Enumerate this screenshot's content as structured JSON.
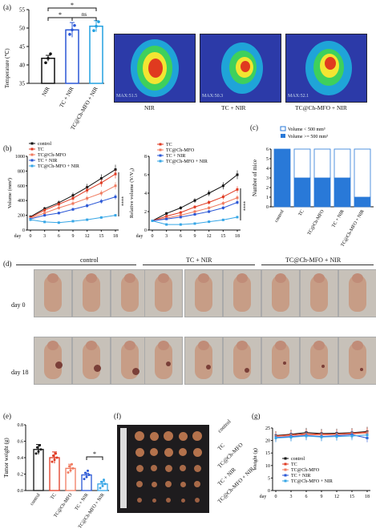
{
  "panels": {
    "a": "(a)",
    "b": "(b)",
    "c": "(c)",
    "d": "(d)",
    "e": "(e)",
    "f": "(f)",
    "g": "(g)"
  },
  "panel_a": {
    "ylabel": "Temperature (℃)",
    "yticks": [
      "35",
      "40",
      "45",
      "50",
      "55"
    ],
    "sig": [
      "*",
      "*",
      "ns"
    ],
    "thermal_labels": [
      "NIR",
      "TC + NIR",
      "TC@Ch-MFO + NIR"
    ],
    "thermal_readouts": [
      "MAX:51.5",
      "MAX:50.3",
      "MAX:52.1"
    ]
  },
  "panel_c": {
    "legend": [
      "Volume < 500 mm³",
      "Volume >= 500 mm³"
    ],
    "ylabel": "Number of mice",
    "yticks": [
      "0",
      "1",
      "2",
      "3",
      "4",
      "5",
      "6"
    ]
  },
  "panel_d": {
    "groups": [
      "control",
      "TC + NIR",
      "TC@Ch-MFO + NIR"
    ],
    "rows": [
      "day 0",
      "day 18"
    ]
  },
  "panel_e": {
    "ylabel": "Tumor weight (g)",
    "yticks": [
      "0.0",
      "0.2",
      "0.4",
      "0.6",
      "0.8"
    ],
    "sig": "*"
  },
  "panel_f": {
    "rows": [
      "control",
      "TC",
      "TC@Ch-MFO",
      "TC + NIR",
      "TC@Ch-MFO + NIR"
    ]
  },
  "panel_g": {
    "ylabel": "Weight (g)",
    "yticks": [
      "0",
      "5",
      "10",
      "15",
      "20",
      "25"
    ],
    "xlabel": "day"
  },
  "panel_b": {
    "sig1": "****",
    "sig2": "****"
  },
  "chart_data": [
    {
      "id": "a",
      "type": "bar",
      "categories": [
        "NIR",
        "TC + NIR",
        "TC@Ch-MFO + NIR"
      ],
      "values": [
        41.8,
        49.5,
        50.5
      ],
      "errors": [
        0.8,
        2.0,
        1.5
      ],
      "ylabel": "Temperature (℃)",
      "ylim": [
        35,
        55
      ],
      "colors": [
        "#111111",
        "#2a57d6",
        "#22a0e0"
      ]
    },
    {
      "id": "b1",
      "type": "line",
      "x": [
        0,
        3,
        6,
        9,
        12,
        15,
        18
      ],
      "xlabel": "day",
      "ylabel": "Volume (mm³)",
      "ylim": [
        0,
        1000
      ],
      "series": [
        {
          "name": "control",
          "color": "#111111",
          "values": [
            180,
            290,
            370,
            470,
            580,
            700,
            820
          ]
        },
        {
          "name": "TC",
          "color": "#e03a22",
          "values": [
            170,
            270,
            350,
            430,
            540,
            640,
            760
          ]
        },
        {
          "name": "TC@Ch-MFO",
          "color": "#f07b60",
          "values": [
            160,
            230,
            300,
            360,
            430,
            500,
            600
          ]
        },
        {
          "name": "TC + NIR",
          "color": "#2a57d6",
          "values": [
            150,
            200,
            230,
            280,
            330,
            390,
            450
          ]
        },
        {
          "name": "TC@Ch-MFO + NIR",
          "color": "#36a6e6",
          "values": [
            140,
            110,
            100,
            120,
            140,
            170,
            200
          ]
        }
      ]
    },
    {
      "id": "b2",
      "type": "line",
      "x": [
        0,
        3,
        6,
        9,
        12,
        15,
        18
      ],
      "xlabel": "day",
      "ylabel": "Relative volume (V/V₀)",
      "ylim": [
        0,
        8
      ],
      "series": [
        {
          "name": "control",
          "color": "#111111",
          "values": [
            1.0,
            1.8,
            2.4,
            3.2,
            4.0,
            4.8,
            6.0
          ]
        },
        {
          "name": "TC",
          "color": "#e03a22",
          "values": [
            1.0,
            1.5,
            1.9,
            2.5,
            3.0,
            3.6,
            4.4
          ]
        },
        {
          "name": "TC@Ch-MFO",
          "color": "#f07b60",
          "values": [
            1.0,
            1.3,
            1.6,
            2.0,
            2.4,
            2.9,
            3.5
          ]
        },
        {
          "name": "TC + NIR",
          "color": "#2a57d6",
          "values": [
            1.0,
            1.2,
            1.4,
            1.7,
            2.0,
            2.4,
            3.0
          ]
        },
        {
          "name": "TC@Ch-MFO + NIR",
          "color": "#36a6e6",
          "values": [
            1.0,
            0.6,
            0.6,
            0.7,
            0.9,
            1.1,
            1.4
          ]
        }
      ]
    },
    {
      "id": "c",
      "type": "bar",
      "stacked": true,
      "categories": [
        "control",
        "TC",
        "TC@Ch-MFO",
        "TC + NIR",
        "TC@Ch-MFO + NIR"
      ],
      "ylim": [
        0,
        6
      ],
      "ylabel": "Number of mice",
      "series": [
        {
          "name": "Volume >= 500 mm³",
          "color": "#2979d8",
          "values": [
            6,
            3,
            3,
            3,
            1
          ]
        },
        {
          "name": "Volume < 500 mm³",
          "color": "#ffffff",
          "values": [
            0,
            3,
            3,
            3,
            5
          ]
        }
      ]
    },
    {
      "id": "e",
      "type": "bar",
      "categories": [
        "control",
        "TC",
        "TC@Ch-MFO",
        "TC + NIR",
        "TC@Ch-MFO + NIR"
      ],
      "values": [
        0.5,
        0.4,
        0.27,
        0.19,
        0.08
      ],
      "errors": [
        0.06,
        0.07,
        0.05,
        0.02,
        0.03
      ],
      "ylabel": "Tumor weight (g)",
      "ylim": [
        0,
        0.8
      ],
      "colors": [
        "#111111",
        "#e03a22",
        "#f07b60",
        "#2a57d6",
        "#36a6e6"
      ]
    },
    {
      "id": "g",
      "type": "line",
      "x": [
        0,
        3,
        6,
        9,
        12,
        15,
        18
      ],
      "xlabel": "day",
      "ylabel": "Weight (g)",
      "ylim": [
        0,
        25
      ],
      "series": [
        {
          "name": "control",
          "color": "#111111",
          "values": [
            22.0,
            22.5,
            23.2,
            22.8,
            22.9,
            23.1,
            23.6
          ]
        },
        {
          "name": "TC",
          "color": "#e03a22",
          "values": [
            21.8,
            22.3,
            22.7,
            22.5,
            22.6,
            22.9,
            23.3
          ]
        },
        {
          "name": "TC@Ch-MFO",
          "color": "#f07b60",
          "values": [
            21.6,
            22.0,
            22.4,
            22.2,
            22.4,
            22.6,
            22.9
          ]
        },
        {
          "name": "TC + NIR",
          "color": "#2a57d6",
          "values": [
            21.2,
            21.6,
            22.0,
            21.6,
            21.9,
            22.3,
            21.0
          ]
        },
        {
          "name": "TC@Ch-MFO + NIR",
          "color": "#36a6e6",
          "values": [
            21.0,
            21.3,
            21.8,
            21.4,
            21.6,
            21.8,
            22.2
          ]
        }
      ]
    }
  ]
}
